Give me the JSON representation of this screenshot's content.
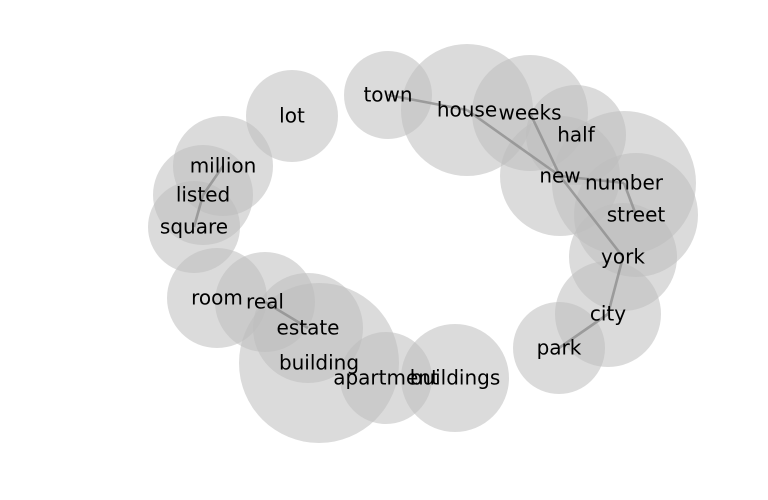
{
  "graph": {
    "nodes": [
      {
        "id": "lot",
        "label": "lot"
      },
      {
        "id": "town",
        "label": "town"
      },
      {
        "id": "house",
        "label": "house"
      },
      {
        "id": "weeks",
        "label": "weeks"
      },
      {
        "id": "half",
        "label": "half"
      },
      {
        "id": "million",
        "label": "million"
      },
      {
        "id": "listed",
        "label": "listed"
      },
      {
        "id": "square",
        "label": "square"
      },
      {
        "id": "new",
        "label": "new"
      },
      {
        "id": "number",
        "label": "number"
      },
      {
        "id": "street",
        "label": "street"
      },
      {
        "id": "york",
        "label": "york"
      },
      {
        "id": "room",
        "label": "room"
      },
      {
        "id": "real",
        "label": "real"
      },
      {
        "id": "estate",
        "label": "estate"
      },
      {
        "id": "city",
        "label": "city"
      },
      {
        "id": "park",
        "label": "park"
      },
      {
        "id": "building",
        "label": "building"
      },
      {
        "id": "apartment",
        "label": "apartment"
      },
      {
        "id": "buildings",
        "label": "buildings"
      }
    ],
    "edges": [
      [
        "town",
        "house"
      ],
      [
        "house",
        "new"
      ],
      [
        "weeks",
        "new"
      ],
      [
        "new",
        "number"
      ],
      [
        "new",
        "york"
      ],
      [
        "number",
        "street"
      ],
      [
        "york",
        "city"
      ],
      [
        "city",
        "park"
      ],
      [
        "million",
        "listed"
      ],
      [
        "listed",
        "square"
      ],
      [
        "real",
        "estate"
      ]
    ],
    "colors": {
      "circle": "#bdbdbd",
      "edge": "#8f8f8f",
      "text": "#000000"
    }
  }
}
